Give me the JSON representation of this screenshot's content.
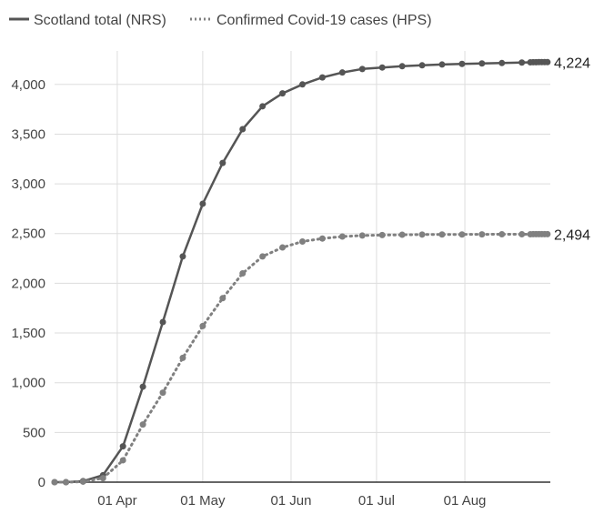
{
  "chart_data": {
    "type": "line",
    "title": "",
    "xlabel": "",
    "ylabel": "",
    "ylim": [
      0,
      4300
    ],
    "yticks": [
      0,
      500,
      1000,
      1500,
      2000,
      2500,
      3000,
      3500,
      4000
    ],
    "ytick_labels": [
      "0",
      "500",
      "1,000",
      "1,500",
      "2,000",
      "2,500",
      "3,000",
      "3,500",
      "4,000"
    ],
    "xlim": [
      "2020-03-10",
      "2020-08-31"
    ],
    "xticks": [
      "2020-04-01",
      "2020-05-01",
      "2020-06-01",
      "2020-07-01",
      "2020-08-01"
    ],
    "xtick_labels": [
      "01 Apr",
      "01 May",
      "01 Jun",
      "01 Jul",
      "01 Aug"
    ],
    "grid": "horizontal",
    "legend_position": "top-left",
    "series": [
      {
        "name": "Scotland total (NRS)",
        "style": "solid",
        "color": "#555555",
        "end_label": "4,224",
        "points": [
          [
            "2020-03-10",
            0
          ],
          [
            "2020-03-14",
            0
          ],
          [
            "2020-03-20",
            10
          ],
          [
            "2020-03-27",
            70
          ],
          [
            "2020-04-03",
            360
          ],
          [
            "2020-04-10",
            960
          ],
          [
            "2020-04-17",
            1610
          ],
          [
            "2020-04-24",
            2270
          ],
          [
            "2020-05-01",
            2800
          ],
          [
            "2020-05-08",
            3210
          ],
          [
            "2020-05-15",
            3550
          ],
          [
            "2020-05-22",
            3780
          ],
          [
            "2020-05-29",
            3910
          ],
          [
            "2020-06-05",
            4000
          ],
          [
            "2020-06-12",
            4070
          ],
          [
            "2020-06-19",
            4120
          ],
          [
            "2020-06-26",
            4155
          ],
          [
            "2020-07-03",
            4170
          ],
          [
            "2020-07-10",
            4183
          ],
          [
            "2020-07-17",
            4192
          ],
          [
            "2020-07-24",
            4200
          ],
          [
            "2020-07-31",
            4206
          ],
          [
            "2020-08-07",
            4211
          ],
          [
            "2020-08-14",
            4215
          ],
          [
            "2020-08-21",
            4220
          ],
          [
            "2020-08-24",
            4222
          ],
          [
            "2020-08-25",
            4223
          ],
          [
            "2020-08-26",
            4223
          ],
          [
            "2020-08-27",
            4224
          ],
          [
            "2020-08-28",
            4224
          ],
          [
            "2020-08-29",
            4224
          ],
          [
            "2020-08-30",
            4224
          ]
        ]
      },
      {
        "name": "Confirmed Covid-19 cases (HPS)",
        "style": "dotted",
        "color": "#808080",
        "end_label": "2,494",
        "points": [
          [
            "2020-03-10",
            0
          ],
          [
            "2020-03-14",
            0
          ],
          [
            "2020-03-20",
            5
          ],
          [
            "2020-03-27",
            40
          ],
          [
            "2020-04-03",
            220
          ],
          [
            "2020-04-10",
            580
          ],
          [
            "2020-04-17",
            900
          ],
          [
            "2020-04-24",
            1250
          ],
          [
            "2020-05-01",
            1570
          ],
          [
            "2020-05-08",
            1850
          ],
          [
            "2020-05-15",
            2100
          ],
          [
            "2020-05-22",
            2270
          ],
          [
            "2020-05-29",
            2360
          ],
          [
            "2020-06-05",
            2420
          ],
          [
            "2020-06-12",
            2450
          ],
          [
            "2020-06-19",
            2470
          ],
          [
            "2020-06-26",
            2480
          ],
          [
            "2020-07-03",
            2485
          ],
          [
            "2020-07-10",
            2488
          ],
          [
            "2020-07-17",
            2490
          ],
          [
            "2020-07-24",
            2491
          ],
          [
            "2020-07-31",
            2491
          ],
          [
            "2020-08-07",
            2492
          ],
          [
            "2020-08-14",
            2493
          ],
          [
            "2020-08-21",
            2493
          ],
          [
            "2020-08-24",
            2493
          ],
          [
            "2020-08-25",
            2494
          ],
          [
            "2020-08-26",
            2494
          ],
          [
            "2020-08-27",
            2494
          ],
          [
            "2020-08-28",
            2494
          ],
          [
            "2020-08-29",
            2494
          ],
          [
            "2020-08-30",
            2494
          ]
        ]
      }
    ]
  }
}
